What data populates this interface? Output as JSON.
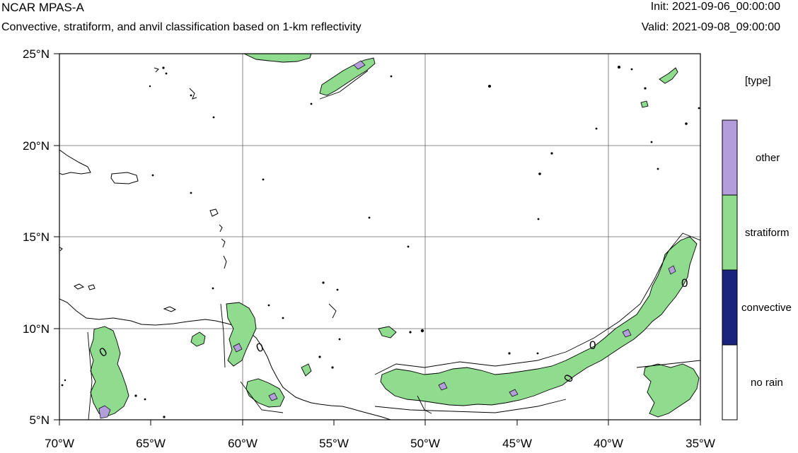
{
  "header": {
    "title": "NCAR MPAS-A",
    "subtitle": "Convective, stratiform, and anvil classification based on 1-km reflectivity",
    "init": "Init: 2021-09-06_00:00:00",
    "valid": "Valid: 2021-09-08_09:00:00"
  },
  "map": {
    "lon_labels": [
      "70°W",
      "65°W",
      "60°W",
      "55°W",
      "50°W",
      "45°W",
      "40°W",
      "35°W"
    ],
    "lat_labels": [
      "25°N",
      "20°N",
      "15°N",
      "10°N",
      "5°N"
    ],
    "lon_range": [
      -70,
      -35
    ],
    "lat_range": [
      5,
      25
    ],
    "contour_label": "0"
  },
  "legend": {
    "title": "[type]",
    "items": [
      {
        "label": "other",
        "color": "#b39ddb"
      },
      {
        "label": "stratiform",
        "color": "#8fdc8f"
      },
      {
        "label": "convective",
        "color": "#1a237e"
      },
      {
        "label": "no rain",
        "color": "#ffffff"
      }
    ]
  }
}
